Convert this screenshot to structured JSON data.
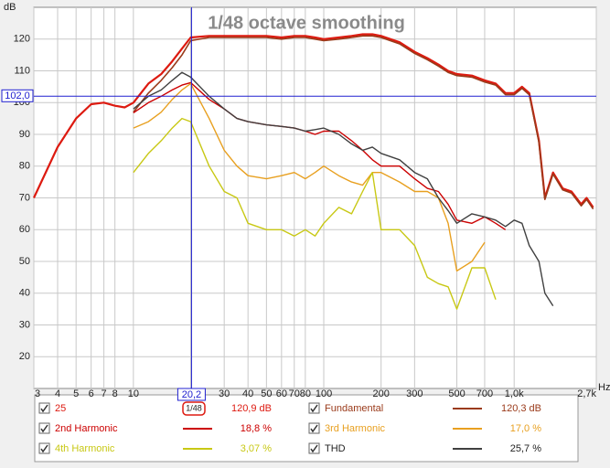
{
  "chart_data": {
    "type": "line",
    "title": "1/48 octave smoothing",
    "y_label": "dB",
    "x_label": "Hz",
    "log_x": true,
    "grid": true,
    "xlim": [
      3,
      2700
    ],
    "ylim": [
      10,
      130
    ],
    "xticks": [
      3,
      4,
      5,
      6,
      7,
      8,
      10,
      20,
      30,
      40,
      50,
      60,
      70,
      80,
      100,
      200,
      300,
      500,
      700,
      {
        "value": 1000,
        "label": "1,0k"
      },
      {
        "value": 2700,
        "label": "2,7k"
      }
    ],
    "yticks": [
      20,
      30,
      40,
      50,
      60,
      70,
      80,
      90,
      100,
      110,
      120
    ],
    "cursor": {
      "x": {
        "value": 20.2,
        "label": "20,2"
      },
      "y": {
        "value": 102,
        "label": "102,0"
      }
    },
    "x": [
      3,
      4,
      5,
      6,
      7,
      8,
      9,
      10,
      12,
      14,
      16,
      18,
      20,
      25,
      30,
      35,
      40,
      50,
      60,
      70,
      80,
      90,
      100,
      120,
      140,
      160,
      180,
      200,
      250,
      300,
      350,
      400,
      450,
      500,
      600,
      700,
      800,
      900,
      1000,
      1100,
      1200,
      1350,
      1450,
      1600,
      1800,
      2000,
      2250,
      2400,
      2600
    ],
    "series": [
      {
        "name": "25",
        "color": "#dd1a10",
        "width": 2.2,
        "badge": "1/48",
        "legend_value": "120,9 dB",
        "values": [
          70,
          86,
          95,
          99.5,
          100,
          99,
          98.5,
          100,
          106,
          109,
          113,
          117,
          120.5,
          121,
          121,
          121,
          121,
          121,
          120.5,
          121,
          121,
          120.5,
          120,
          120.5,
          121,
          121.5,
          121.5,
          121,
          119,
          116,
          114,
          112,
          110,
          109,
          108.5,
          107,
          106,
          103,
          103,
          105,
          103,
          88,
          70,
          78,
          73,
          72,
          68,
          70,
          67
        ]
      },
      {
        "name": "Fundamental",
        "color": "#9a3a1a",
        "width": 1.6,
        "legend_value": "120,3 dB",
        "values": [
          null,
          null,
          null,
          null,
          null,
          null,
          null,
          97,
          103,
          107,
          111,
          115,
          119.5,
          120.5,
          120.5,
          120.5,
          120.5,
          120.5,
          120,
          120.5,
          120.5,
          120,
          119.5,
          120,
          120.5,
          121,
          121,
          120.5,
          118.5,
          115.5,
          113.5,
          111.5,
          109.5,
          108.5,
          108,
          106.5,
          105.5,
          102.5,
          102.5,
          104.5,
          102.5,
          87.5,
          69.5,
          77.5,
          72.5,
          71.5,
          67.5,
          69.5,
          66.5
        ]
      },
      {
        "name": "2nd Harmonic",
        "color": "#cc0000",
        "width": 1.4,
        "legend_value": "18,8 %",
        "values": [
          null,
          null,
          null,
          null,
          null,
          null,
          null,
          96.8,
          100,
          102,
          104,
          105.5,
          106.3,
          101,
          98,
          95,
          94,
          93,
          92.5,
          92,
          91,
          90,
          91,
          91,
          88,
          85,
          82,
          80,
          80,
          76,
          73,
          72,
          68,
          63,
          62,
          64,
          62,
          60,
          null,
          null,
          null,
          null,
          null,
          null,
          null,
          null,
          null,
          null,
          null
        ]
      },
      {
        "name": "3rd Harmonic",
        "color": "#e8a020",
        "width": 1.4,
        "legend_value": "17,0 %",
        "values": [
          null,
          null,
          null,
          null,
          null,
          null,
          null,
          92,
          94,
          97,
          101,
          104,
          106,
          95,
          85,
          80,
          77,
          76,
          77,
          78,
          76,
          78,
          80,
          77,
          75,
          74,
          78,
          78,
          75,
          72,
          72,
          70,
          62,
          47,
          50,
          56,
          null,
          null,
          null,
          null,
          null,
          null,
          null,
          null,
          null,
          null,
          null,
          null,
          null
        ]
      },
      {
        "name": "4th Harmonic",
        "color": "#c8c814",
        "width": 1.4,
        "legend_value": "3,07 %",
        "values": [
          null,
          null,
          null,
          null,
          null,
          null,
          null,
          78,
          84,
          88,
          92,
          95,
          94,
          80,
          72,
          70,
          62,
          60,
          60,
          58,
          60,
          58,
          62,
          67,
          65,
          72,
          78,
          60,
          60,
          55,
          45,
          43,
          42,
          35,
          48,
          48,
          38,
          null,
          null,
          null,
          null,
          null,
          null,
          null,
          null,
          null,
          null,
          null,
          null
        ]
      },
      {
        "name": "THD",
        "color": "#404040",
        "width": 1.4,
        "legend_value": "25,7 %",
        "values": [
          null,
          null,
          null,
          null,
          null,
          null,
          null,
          98,
          102,
          104,
          107,
          109.5,
          108,
          102,
          98,
          95,
          94,
          93,
          92.5,
          92,
          91,
          91.5,
          92,
          90,
          87,
          85,
          86,
          84,
          82,
          78,
          76,
          70,
          66,
          62,
          65,
          64,
          63,
          61,
          63,
          62,
          55,
          50,
          40,
          36,
          null,
          null,
          null,
          null,
          null
        ]
      }
    ]
  }
}
